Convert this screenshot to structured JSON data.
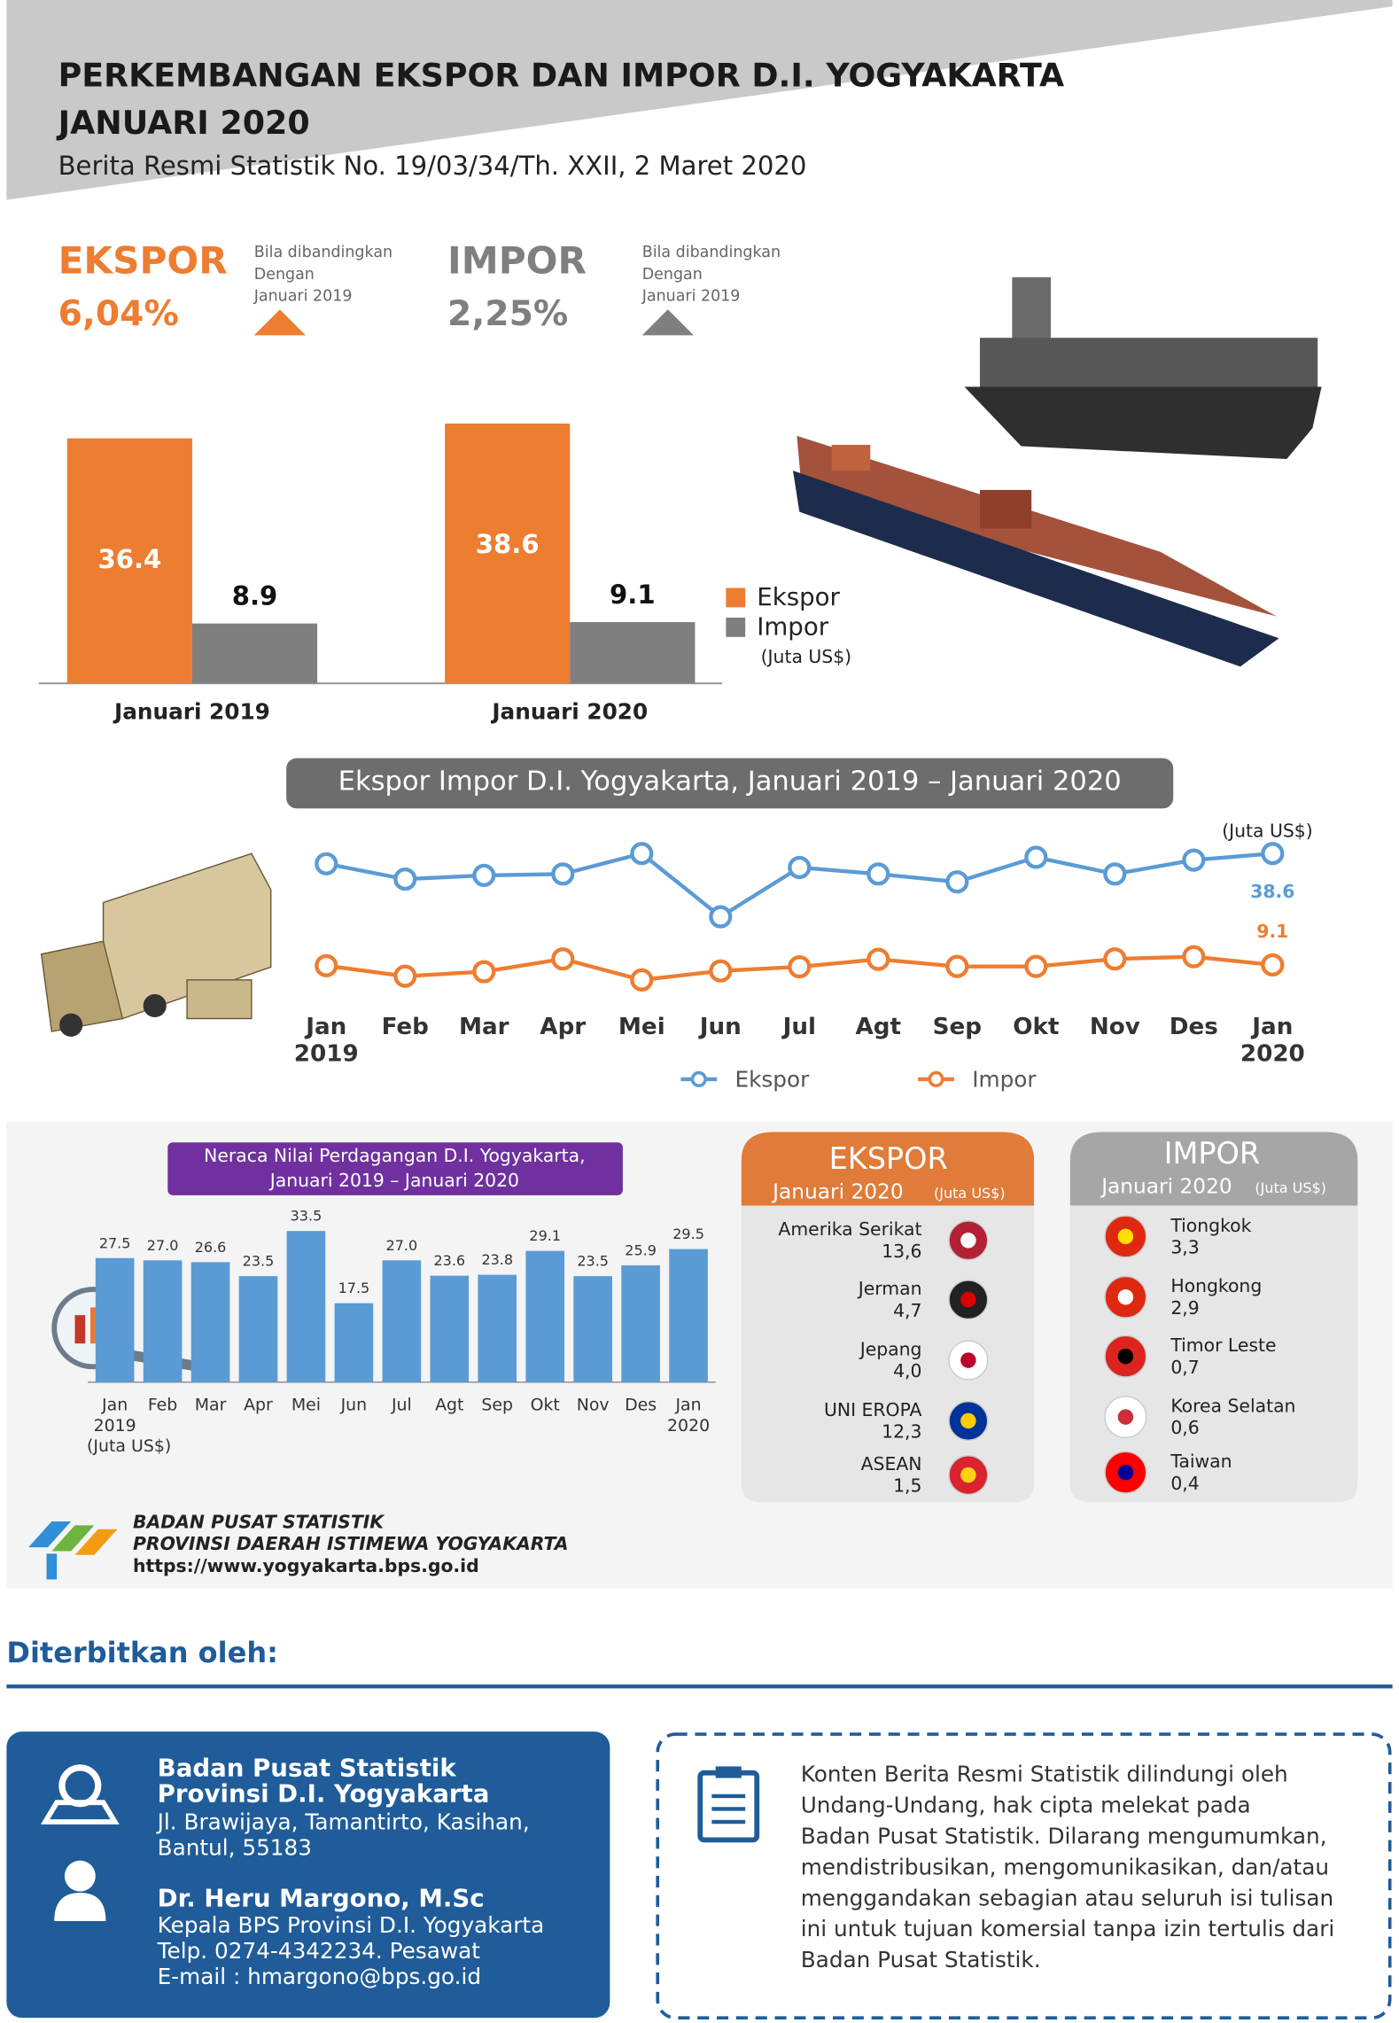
{
  "header": {
    "title_lines": [
      "PERKEMBANGAN EKSPOR DAN IMPOR D.I. YOGYAKARTA",
      "JANUARI 2020"
    ],
    "subtitle": "Berita Resmi Statistik No. 19/03/34/Th. XXII, 2 Maret 2020"
  },
  "summary": {
    "ekspor": {
      "label": "EKSPOR",
      "change": "6,04%",
      "note_lines": [
        "Bila dibandingkan",
        "Dengan",
        "Januari 2019"
      ]
    },
    "impor": {
      "label": "IMPOR",
      "change": "2,25%",
      "note_lines": [
        "Bila dibandingkan",
        "Dengan",
        "Januari 2019"
      ]
    }
  },
  "comparison_chart": {
    "type": "bar",
    "categories": [
      "Januari 2019",
      "Januari 2020"
    ],
    "series": [
      {
        "name": "Ekspor",
        "color": "#ed7d31",
        "values": [
          36.4,
          38.6
        ]
      },
      {
        "name": "Impor",
        "color": "#7f7f7f",
        "values": [
          8.9,
          9.1
        ]
      }
    ],
    "unit": "(Juta US$)"
  },
  "trend_chart": {
    "type": "line",
    "title": "Ekspor Impor D.I. Yogyakarta, Januari 2019 – Januari 2020",
    "unit": "(Juta US$)",
    "categories": [
      "Jan",
      "Feb",
      "Mar",
      "Apr",
      "Mei",
      "Jun",
      "Jul",
      "Agt",
      "Sep",
      "Okt",
      "Nov",
      "Des",
      "Jan"
    ],
    "sublabels": [
      "2019",
      null,
      null,
      null,
      null,
      null,
      null,
      null,
      null,
      null,
      null,
      null,
      "2020"
    ],
    "series": [
      {
        "name": "Ekspor",
        "color": "#5b9bd5",
        "values": [
          36.4,
          33.1,
          33.9,
          34.2,
          38.6,
          25.0,
          35.6,
          34.2,
          32.5,
          37.8,
          34.2,
          37.2,
          38.6
        ]
      },
      {
        "name": "Impor",
        "color": "#ed7d31",
        "values": [
          8.9,
          6.1,
          7.3,
          10.7,
          5.1,
          7.5,
          8.6,
          10.6,
          8.7,
          8.7,
          10.7,
          11.3,
          9.1
        ]
      }
    ]
  },
  "balance_chart": {
    "type": "bar",
    "title_lines": [
      "Neraca Nilai Perdagangan D.I. Yogyakarta,",
      "Januari 2019 – Januari 2020"
    ],
    "categories": [
      "Jan",
      "Feb",
      "Mar",
      "Apr",
      "Mei",
      "Jun",
      "Jul",
      "Agt",
      "Sep",
      "Okt",
      "Nov",
      "Des",
      "Jan"
    ],
    "sublabels": [
      "2019",
      null,
      null,
      null,
      null,
      null,
      null,
      null,
      null,
      null,
      null,
      null,
      "2020"
    ],
    "values": [
      27.5,
      27.0,
      26.6,
      23.5,
      33.5,
      17.5,
      27.0,
      23.6,
      23.8,
      29.1,
      23.5,
      25.9,
      29.5
    ],
    "value_labels": [
      "27.5",
      "27.0",
      "26.6",
      "23.5",
      "33.5",
      "17.5",
      "27.0",
      "23.6",
      "23.8",
      "29.1",
      "23.5",
      "25.9",
      "29.5"
    ],
    "color": "#5b9bd5",
    "unit": "(Juta US$)"
  },
  "export_destinations": {
    "title": "EKSPOR",
    "period": "Januari 2020",
    "unit": "(Juta US$)",
    "items": [
      {
        "country": "Amerika Serikat",
        "value": "13,6"
      },
      {
        "country": "Jerman",
        "value": "4,7"
      },
      {
        "country": "Jepang",
        "value": "4,0"
      },
      {
        "country": "UNI EROPA",
        "value": "12,3"
      },
      {
        "country": "ASEAN",
        "value": "1,5"
      }
    ]
  },
  "import_origins": {
    "title": "IMPOR",
    "period": "Januari 2020",
    "unit": "(Juta US$)",
    "items": [
      {
        "country": "Tiongkok",
        "value": "3,3"
      },
      {
        "country": "Hongkong",
        "value": "2,9"
      },
      {
        "country": "Timor Leste",
        "value": "0,7"
      },
      {
        "country": "Korea Selatan",
        "value": "0,6"
      },
      {
        "country": "Taiwan",
        "value": "0,4"
      }
    ]
  },
  "footer": {
    "org_lines": [
      "BADAN PUSAT STATISTIK",
      "PROVINSI DAERAH ISTIMEWA YOGYAKARTA"
    ],
    "url": "https://www.yogyakarta.bps.go.id"
  },
  "publisher": {
    "heading": "Diterbitkan oleh:",
    "org_lines": [
      "Badan Pusat Statistik",
      "Provinsi D.I. Yogyakarta"
    ],
    "address_lines": [
      "Jl. Brawijaya, Tamantirto, Kasihan,",
      "Bantul, 55183"
    ],
    "head_name": "Dr. Heru Margono, M.Sc",
    "head_lines": [
      "Kepala BPS Provinsi D.I. Yogyakarta",
      "Telp. 0274-4342234. Pesawat",
      "E-mail : hmargono@bps.go.id"
    ],
    "notice_lines": [
      "Konten Berita Resmi Statistik dilindungi oleh",
      "Undang-Undang, hak cipta melekat pada",
      "Badan Pusat Statistik. Dilarang mengumumkan,",
      "mendistribusikan, mengomunikasikan, dan/atau",
      "menggandakan sebagian atau seluruh isi tulisan",
      "ini untuk tujuan komersial tanpa izin tertulis dari",
      "Badan Pusat Statistik."
    ]
  }
}
